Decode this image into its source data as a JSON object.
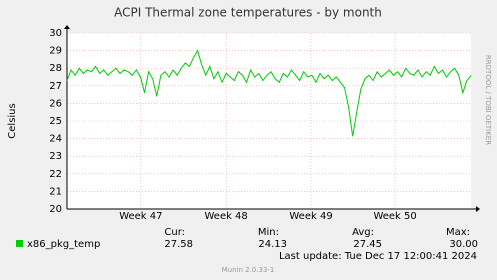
{
  "chart_data": {
    "type": "line",
    "title": "ACPI Thermal zone temperatures - by month",
    "y_label": "Celsius",
    "side_note": "RRDTOOL / TOBI OETIKER",
    "ylim": [
      20,
      30
    ],
    "yticks": [
      20,
      21,
      22,
      23,
      24,
      25,
      26,
      27,
      28,
      29,
      30
    ],
    "xlim": [
      0,
      99
    ],
    "xticks": [
      {
        "value": 18.1,
        "label": "Week 47"
      },
      {
        "value": 39,
        "label": "Week 48"
      },
      {
        "value": 59.8,
        "label": "Week 49"
      },
      {
        "value": 80.4,
        "label": "Week 50"
      }
    ],
    "grid": true,
    "series": [
      {
        "name": "x86_pkg_temp",
        "color": "#00cc00",
        "values": [
          27.3,
          27.9,
          27.6,
          28.0,
          27.7,
          27.9,
          27.8,
          28.1,
          27.7,
          27.9,
          27.6,
          27.8,
          28.0,
          27.7,
          27.9,
          27.8,
          27.6,
          27.9,
          27.5,
          26.6,
          27.8,
          27.4,
          26.4,
          27.6,
          27.8,
          27.5,
          27.9,
          27.6,
          28.0,
          28.3,
          28.1,
          28.6,
          29.0,
          28.2,
          27.6,
          28.1,
          27.4,
          27.8,
          27.2,
          27.7,
          27.5,
          27.3,
          27.8,
          27.6,
          27.2,
          27.9,
          27.5,
          27.7,
          27.3,
          27.6,
          27.8,
          27.4,
          27.2,
          27.7,
          27.5,
          27.9,
          27.6,
          27.3,
          27.8,
          27.5,
          27.6,
          27.2,
          27.7,
          27.4,
          27.6,
          27.3,
          27.5,
          27.2,
          26.9,
          25.8,
          24.13,
          25.5,
          26.8,
          27.4,
          27.6,
          27.3,
          27.8,
          27.5,
          27.7,
          27.9,
          27.6,
          27.8,
          27.5,
          28.0,
          27.7,
          27.6,
          27.9,
          27.5,
          27.8,
          27.6,
          28.1,
          27.7,
          27.9,
          27.5,
          27.8,
          28.0,
          27.6,
          26.6,
          27.3,
          27.58
        ]
      }
    ],
    "stats": {
      "headers": [
        "Cur:",
        "Min:",
        "Avg:",
        "Max:"
      ],
      "values": [
        27.58,
        24.13,
        27.45,
        30
      ],
      "value_labels": [
        "27.58",
        "24.13",
        "27.45",
        "30.00"
      ]
    },
    "last_update": "Last update: Tue Dec 17 12:00:41 2024",
    "footer": "Munin 2.0.33-1"
  }
}
